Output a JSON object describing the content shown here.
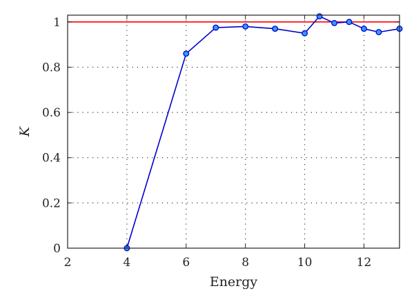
{
  "chart_data": {
    "type": "line",
    "title": "",
    "xlabel": "Energy",
    "ylabel": "K",
    "xlim": [
      2,
      13.2
    ],
    "ylim": [
      0,
      1.03
    ],
    "xticks": [
      2,
      4,
      6,
      8,
      10,
      12
    ],
    "yticks": [
      0,
      0.2,
      0.4,
      0.6,
      0.8,
      1
    ],
    "x_tick_labels": [
      "2",
      "4",
      "6",
      "8",
      "10",
      "12"
    ],
    "y_tick_labels": [
      "0",
      "0.2",
      "0.4",
      "0.6",
      "0.8",
      "1"
    ],
    "grid": true,
    "reference_line": {
      "y": 1,
      "color": "#ff0000"
    },
    "series": [
      {
        "color": "#0000cc",
        "marker_fill": "#3399ff",
        "x": [
          4,
          6,
          7,
          8,
          9,
          10,
          10.5,
          11,
          11.5,
          12,
          12.5,
          13.2
        ],
        "y": [
          0,
          0.86,
          0.975,
          0.98,
          0.97,
          0.95,
          1.025,
          0.995,
          1.0,
          0.97,
          0.955,
          0.97
        ]
      }
    ]
  }
}
